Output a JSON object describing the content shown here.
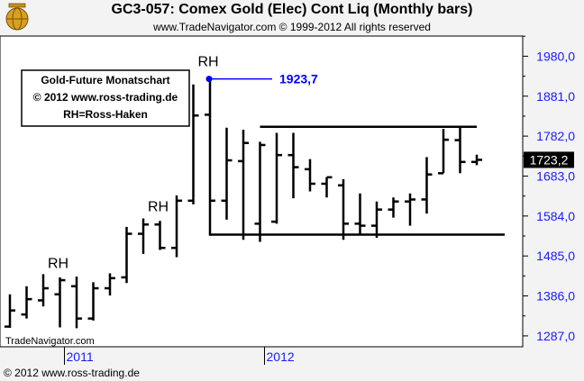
{
  "header": {
    "title": "GC3-057:  Comex Gold (Elec) Cont Liq  (Monthly bars)",
    "subtitle": "www.TradeNavigator.com © 1999-2012 All rights reserved"
  },
  "legend_box": {
    "line1": "Gold-Future Monatschart",
    "line2": "© 2012  www.ross-trading.de",
    "line3": "RH=Ross-Haken"
  },
  "watermark": "TradeNavigator.com",
  "footer": "© 2012  www.ross-trading.de",
  "colors": {
    "background": "#f3f3f3",
    "plot_background": "#ffffff",
    "bars": "#000000",
    "axis_labels": "#1a1aff",
    "peak_marker": "#0000ff",
    "last_price_bg": "#000000"
  },
  "chart_data": {
    "type": "ohlc",
    "title": "GC3-057:  Comex Gold (Elec) Cont Liq  (Monthly bars)",
    "xlabel": "",
    "ylabel": "",
    "ylim": [
      1260,
      2030
    ],
    "yticks": [
      1287.0,
      1386.0,
      1485.0,
      1584.0,
      1683.0,
      1782.0,
      1881.0,
      1980.0
    ],
    "ytick_labels": [
      "1287,0",
      "1386,0",
      "1485,0",
      "1584,0",
      "1683,0",
      "1782,0",
      "1881,0",
      "1980,0"
    ],
    "xticks": [
      {
        "label": "2011",
        "bar_index": 3
      },
      {
        "label": "2012",
        "bar_index": 15
      }
    ],
    "grid": false,
    "last_price": {
      "value": 1723.2,
      "label": "1723,2"
    },
    "bars": [
      {
        "open": 1310,
        "high": 1390,
        "low": 1307,
        "close": 1350
      },
      {
        "open": 1340,
        "high": 1410,
        "low": 1330,
        "close": 1378
      },
      {
        "open": 1375,
        "high": 1440,
        "low": 1360,
        "close": 1405
      },
      {
        "open": 1390,
        "high": 1432,
        "low": 1308,
        "close": 1425
      },
      {
        "open": 1410,
        "high": 1434,
        "low": 1306,
        "close": 1330
      },
      {
        "open": 1330,
        "high": 1420,
        "low": 1325,
        "close": 1405
      },
      {
        "open": 1405,
        "high": 1442,
        "low": 1387,
        "close": 1430
      },
      {
        "open": 1432,
        "high": 1557,
        "low": 1418,
        "close": 1540
      },
      {
        "open": 1540,
        "high": 1578,
        "low": 1490,
        "close": 1563
      },
      {
        "open": 1563,
        "high": 1572,
        "low": 1500,
        "close": 1505
      },
      {
        "open": 1505,
        "high": 1635,
        "low": 1482,
        "close": 1622
      },
      {
        "open": 1622,
        "high": 1910,
        "low": 1613,
        "close": 1833
      },
      {
        "open": 1835,
        "high": 1921,
        "low": 1535,
        "close": 1622
      },
      {
        "open": 1622,
        "high": 1803,
        "low": 1575,
        "close": 1722
      },
      {
        "open": 1720,
        "high": 1798,
        "low": 1525,
        "close": 1765
      },
      {
        "open": 1565,
        "high": 1768,
        "low": 1520,
        "close": 1760
      },
      {
        "open": 1570,
        "high": 1790,
        "low": 1565,
        "close": 1735
      },
      {
        "open": 1735,
        "high": 1790,
        "low": 1628,
        "close": 1705
      },
      {
        "open": 1700,
        "high": 1725,
        "low": 1645,
        "close": 1664
      },
      {
        "open": 1664,
        "high": 1680,
        "low": 1630,
        "close": 1680
      },
      {
        "open": 1660,
        "high": 1675,
        "low": 1525,
        "close": 1565
      },
      {
        "open": 1565,
        "high": 1640,
        "low": 1540,
        "close": 1560
      },
      {
        "open": 1560,
        "high": 1620,
        "low": 1530,
        "close": 1600
      },
      {
        "open": 1600,
        "high": 1630,
        "low": 1580,
        "close": 1620
      },
      {
        "open": 1620,
        "high": 1640,
        "low": 1560,
        "close": 1625
      },
      {
        "open": 1625,
        "high": 1730,
        "low": 1590,
        "close": 1687
      },
      {
        "open": 1690,
        "high": 1800,
        "low": 1690,
        "close": 1773
      },
      {
        "open": 1772,
        "high": 1803,
        "low": 1690,
        "close": 1718
      },
      {
        "open": 1718,
        "high": 1736,
        "low": 1710,
        "close": 1723.2
      }
    ],
    "annotations": [
      {
        "text": "RH",
        "bar_index": 3,
        "value": 1455
      },
      {
        "text": "RH",
        "bar_index": 9,
        "value": 1596
      },
      {
        "text": "RH",
        "bar_index": 12,
        "value": 1955
      },
      {
        "text": "1923,7",
        "value": 1923.7,
        "bar_index": 12
      }
    ],
    "trend_lines": [
      {
        "from_bar": 12,
        "to_bar": 30,
        "value": 1538,
        "name": "lower-range"
      },
      {
        "from_bar": 15,
        "to_bar": 28,
        "value": 1805,
        "name": "upper-range"
      }
    ]
  }
}
